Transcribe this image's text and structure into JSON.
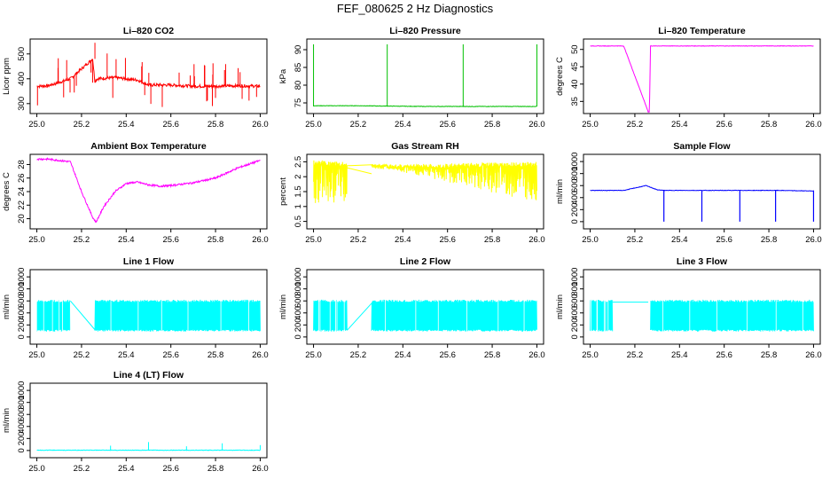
{
  "page_title": "FEF_080625  2 Hz Diagnostics",
  "chart_data": [
    {
      "type": "line",
      "title": "Li–820 CO2",
      "xlabel": "",
      "ylabel": "Licor ppm",
      "xlim": [
        24.97,
        26.03
      ],
      "ylim": [
        260,
        560
      ],
      "x_ticks": [
        25.0,
        25.2,
        25.4,
        25.6,
        25.8,
        26.0
      ],
      "y_ticks": [
        300,
        400,
        500
      ],
      "series": [
        {
          "color": "#ff0000",
          "x": [
            25.0,
            25.05,
            25.1,
            25.15,
            25.2,
            25.25,
            25.26,
            25.27,
            25.35,
            25.45,
            25.5,
            25.6,
            25.7,
            25.8,
            25.9,
            26.0
          ],
          "y": [
            370,
            372,
            385,
            400,
            440,
            480,
            390,
            400,
            405,
            395,
            375,
            375,
            370,
            370,
            372,
            370
          ]
        }
      ]
    },
    {
      "type": "line",
      "title": "Li–820 Pressure",
      "xlabel": "",
      "ylabel": "kPa",
      "xlim": [
        24.97,
        26.03
      ],
      "ylim": [
        72,
        93
      ],
      "x_ticks": [
        25.0,
        25.2,
        25.4,
        25.6,
        25.8,
        26.0
      ],
      "y_ticks": [
        75,
        80,
        85,
        90
      ],
      "series": [
        {
          "color": "#00c000",
          "x": [
            25.0,
            25.2,
            25.33,
            25.5,
            25.67,
            25.8,
            26.0
          ],
          "y": [
            74.2,
            74.2,
            74.1,
            74.0,
            74.0,
            74.0,
            74.0
          ]
        }
      ]
    },
    {
      "type": "line",
      "title": "Li–820 Temperature",
      "xlabel": "",
      "ylabel": "degrees C",
      "xlim": [
        24.97,
        26.03
      ],
      "ylim": [
        31.5,
        53
      ],
      "x_ticks": [
        25.0,
        25.2,
        25.4,
        25.6,
        25.8,
        26.0
      ],
      "y_ticks": [
        35,
        40,
        45,
        50
      ],
      "series": [
        {
          "color": "#ff00ff",
          "x": [
            25.0,
            25.15,
            25.26,
            25.265,
            25.27,
            25.4,
            25.6,
            25.8,
            26.0
          ],
          "y": [
            51,
            51,
            32,
            32,
            51,
            51,
            51,
            51,
            51
          ]
        }
      ]
    },
    {
      "type": "line",
      "title": "Ambient Box Temperature",
      "xlabel": "",
      "ylabel": "degrees C",
      "xlim": [
        24.97,
        26.03
      ],
      "ylim": [
        18.5,
        29.5
      ],
      "x_ticks": [
        25.0,
        25.2,
        25.4,
        25.6,
        25.8,
        26.0
      ],
      "y_ticks": [
        20,
        22,
        24,
        26,
        28
      ],
      "series": [
        {
          "color": "#ff00ff",
          "x": [
            25.0,
            25.05,
            25.1,
            25.15,
            25.2,
            25.25,
            25.265,
            25.3,
            25.35,
            25.4,
            25.45,
            25.5,
            25.55,
            25.6,
            25.7,
            25.8,
            25.9,
            26.0
          ],
          "y": [
            28.8,
            28.8,
            28.6,
            28.4,
            24.0,
            20.2,
            19.5,
            21.8,
            24.0,
            25.2,
            25.4,
            25.0,
            24.8,
            24.9,
            25.3,
            26.0,
            27.5,
            28.6
          ]
        }
      ]
    },
    {
      "type": "line",
      "title": "Gas Stream RH",
      "xlabel": "",
      "ylabel": "percent",
      "xlim": [
        24.97,
        26.03
      ],
      "ylim": [
        0.25,
        2.75
      ],
      "x_ticks": [
        25.0,
        25.2,
        25.4,
        25.6,
        25.8,
        26.0
      ],
      "y_ticks": [
        0.5,
        1.0,
        1.5,
        2.0,
        2.5
      ],
      "series": [
        {
          "color": "#ffff00",
          "x": [
            25.0,
            25.15,
            25.26,
            26.0
          ],
          "y_high": [
            2.55,
            2.5,
            2.4,
            2.5
          ],
          "y_low": [
            0.5,
            0.5,
            2.4,
            0.5
          ]
        }
      ]
    },
    {
      "type": "line",
      "title": "Sample Flow",
      "xlabel": "",
      "ylabel": "ml/min",
      "xlim": [
        24.97,
        26.03
      ],
      "ylim": [
        -120,
        1120
      ],
      "x_ticks": [
        25.0,
        25.2,
        25.4,
        25.6,
        25.8,
        26.0
      ],
      "y_ticks": [
        0,
        200,
        400,
        600,
        800,
        1000
      ],
      "series": [
        {
          "color": "#0000ff",
          "x": [
            25.0,
            25.15,
            25.25,
            25.3,
            25.33,
            25.5,
            25.67,
            25.83,
            26.0
          ],
          "y": [
            520,
            520,
            600,
            530,
            520,
            520,
            520,
            520,
            510
          ],
          "dips": [
            25.33,
            25.5,
            25.67,
            25.83,
            26.0
          ]
        }
      ]
    },
    {
      "type": "line",
      "title": "Line 1 Flow",
      "xlabel": "",
      "ylabel": "ml/min",
      "xlim": [
        24.97,
        26.03
      ],
      "ylim": [
        -120,
        1120
      ],
      "x_ticks": [
        25.0,
        25.2,
        25.4,
        25.6,
        25.8,
        26.0
      ],
      "y_ticks": [
        0,
        200,
        400,
        600,
        800,
        1000
      ],
      "series": [
        {
          "color": "#00ffff",
          "bands": [
            [
              25.0,
              25.15
            ],
            [
              25.26,
              26.0
            ]
          ],
          "band_low": 100,
          "band_high": 600,
          "x": [
            25.15,
            25.26
          ],
          "y": [
            600,
            120
          ]
        }
      ]
    },
    {
      "type": "line",
      "title": "Line 2 Flow",
      "xlabel": "",
      "ylabel": "ml/min",
      "xlim": [
        24.97,
        26.03
      ],
      "ylim": [
        -120,
        1120
      ],
      "x_ticks": [
        25.0,
        25.2,
        25.4,
        25.6,
        25.8,
        26.0
      ],
      "y_ticks": [
        0,
        200,
        400,
        600,
        800,
        1000
      ],
      "series": [
        {
          "color": "#00ffff",
          "bands": [
            [
              25.0,
              25.15
            ],
            [
              25.26,
              26.0
            ]
          ],
          "band_low": 100,
          "band_high": 600,
          "x": [
            25.15,
            25.26
          ],
          "y": [
            110,
            560
          ]
        }
      ]
    },
    {
      "type": "line",
      "title": "Line 3 Flow",
      "xlabel": "",
      "ylabel": "ml/min",
      "xlim": [
        24.97,
        26.03
      ],
      "ylim": [
        -120,
        1120
      ],
      "x_ticks": [
        25.0,
        25.2,
        25.4,
        25.6,
        25.8,
        26.0
      ],
      "y_ticks": [
        0,
        200,
        400,
        600,
        800,
        1000
      ],
      "series": [
        {
          "color": "#00ffff",
          "bands": [
            [
              25.0,
              25.1
            ],
            [
              25.27,
              26.0
            ]
          ],
          "band_low": 100,
          "band_high": 600,
          "x": [
            25.1,
            25.26
          ],
          "y": [
            580,
            580
          ]
        }
      ]
    },
    {
      "type": "line",
      "title": "Line 4 (LT) Flow",
      "xlabel": "",
      "ylabel": "ml/min",
      "xlim": [
        24.97,
        26.03
      ],
      "ylim": [
        -120,
        1120
      ],
      "x_ticks": [
        25.0,
        25.2,
        25.4,
        25.6,
        25.8,
        26.0
      ],
      "y_ticks": [
        0,
        200,
        400,
        600,
        800,
        1000
      ],
      "series": [
        {
          "color": "#00ffff",
          "x": [
            25.0,
            25.33,
            25.5,
            25.67,
            25.83,
            26.0
          ],
          "y": [
            5,
            5,
            5,
            5,
            5,
            5
          ],
          "spikes": [
            [
              25.33,
              80
            ],
            [
              25.5,
              140
            ],
            [
              25.67,
              70
            ],
            [
              25.83,
              120
            ],
            [
              26.0,
              90
            ]
          ]
        }
      ]
    }
  ]
}
